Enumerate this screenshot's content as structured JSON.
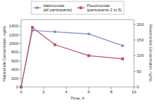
{
  "chart_data": {
    "type": "line",
    "x": [
      0,
      1,
      3,
      6,
      9
    ],
    "xlabel": "Time, h",
    "ylabel": "Halcinonide Concentration, ng/mL",
    "y2label": "Fluocinonide Concentration, ng/mL",
    "series": [
      {
        "name": "Halcinonide\n(all participants)",
        "color": "#8090bb",
        "marker": "circle",
        "values": [
          0,
          1300,
          1270,
          1220,
          950
        ]
      },
      {
        "name": "Fluocinonide\n(participants 2 to 5)",
        "color": "#c05070",
        "marker": "square",
        "axis": "y2",
        "values": [
          0,
          190,
          135,
          100,
          90
        ]
      }
    ],
    "xlim": [
      0,
      10
    ],
    "xticks": [
      0,
      2,
      4,
      6,
      8,
      10
    ],
    "ylim": [
      0,
      1550
    ],
    "yticks": [
      0,
      200,
      400,
      600,
      800,
      1000,
      1200,
      1400
    ],
    "y2lim": [
      0,
      215
    ],
    "y2ticks": [
      0,
      50,
      100,
      150,
      200
    ],
    "grid": false,
    "legend": "top"
  }
}
